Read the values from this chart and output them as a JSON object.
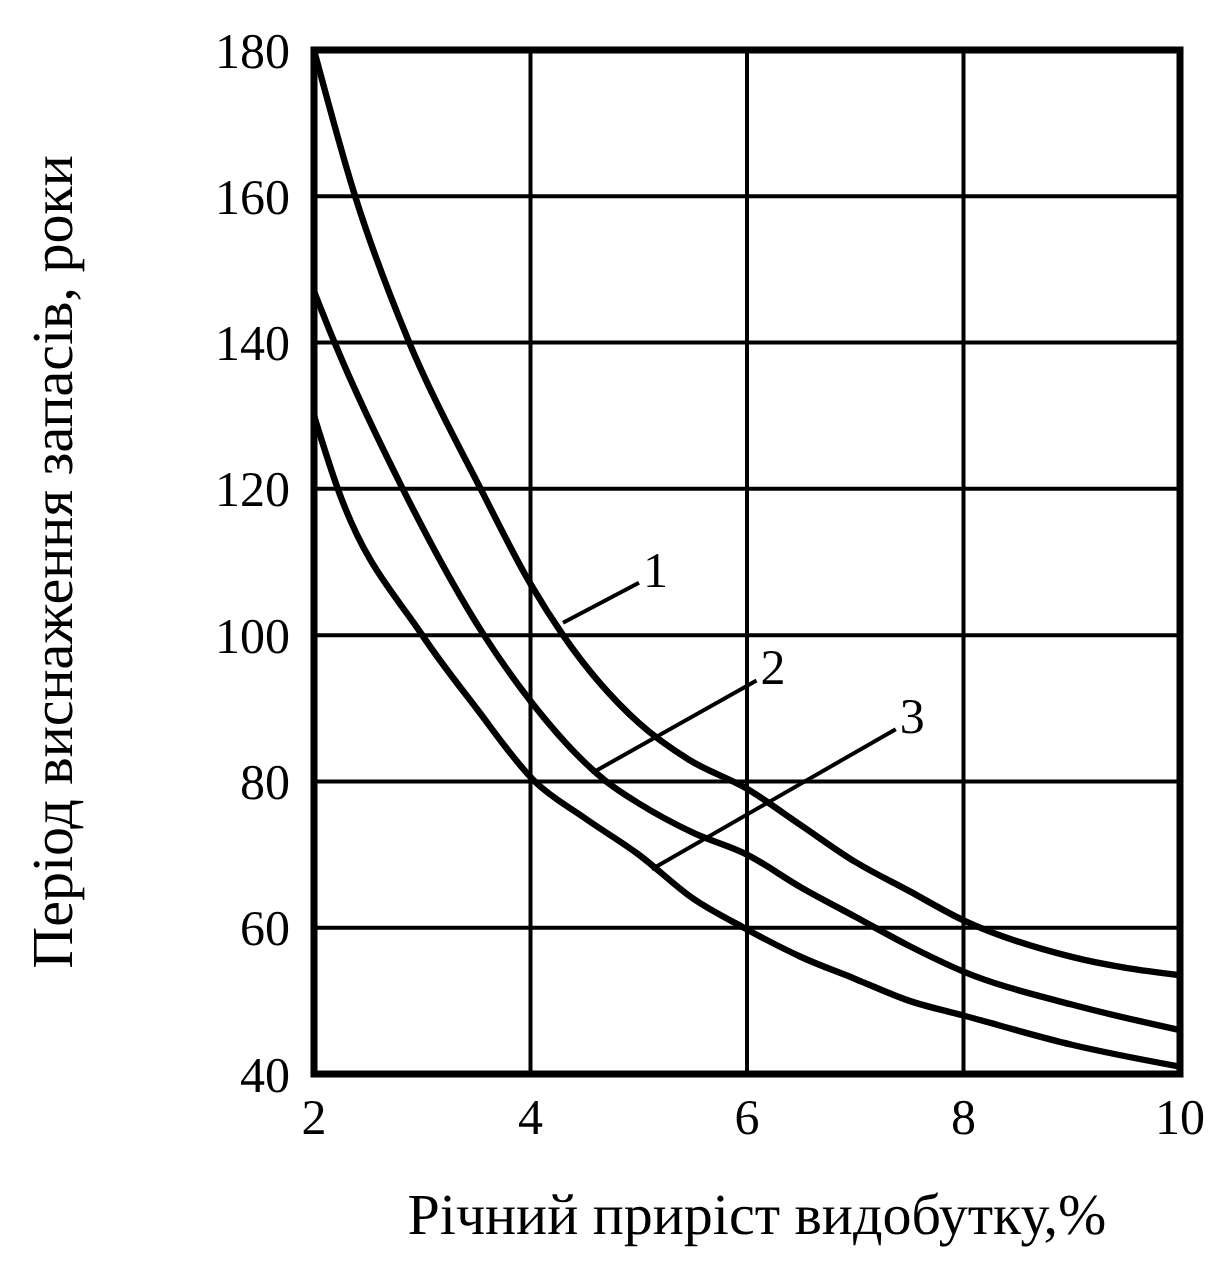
{
  "chart_data": {
    "type": "line",
    "xlabel": "Річний приріст видобутку,%",
    "ylabel": "Період виснаження запасів, роки",
    "xlim": [
      2,
      10
    ],
    "ylim": [
      40,
      180
    ],
    "xticks": [
      2,
      4,
      6,
      8,
      10
    ],
    "yticks": [
      40,
      60,
      80,
      100,
      120,
      140,
      160,
      180
    ],
    "grid": true,
    "marker": "none",
    "line_style": "solid",
    "series": [
      {
        "color": "#000000",
        "x": [
          2,
          2.38,
          2.88,
          3.54,
          4,
          4.3,
          5,
          5.46,
          6,
          6.5,
          7,
          7.5,
          8,
          9,
          10
        ],
        "values": [
          180,
          160,
          140,
          120,
          107,
          100,
          88,
          83,
          79,
          74,
          69,
          65,
          61,
          56,
          53.5
        ]
      },
      {
        "color": "#000000",
        "x": [
          2,
          2.19,
          2.82,
          3.57,
          4,
          4.7,
          5,
          5.5,
          6,
          6.5,
          7,
          7.5,
          8,
          9,
          10
        ],
        "values": [
          147,
          140,
          120,
          100,
          91,
          80,
          77,
          73,
          70,
          65.5,
          61.5,
          57.5,
          54,
          49.5,
          46
        ]
      },
      {
        "color": "#000000",
        "x": [
          2,
          2.22,
          3,
          3.5,
          4.04,
          4.5,
          5,
          5.5,
          5.97,
          6.5,
          7,
          7.5,
          8,
          9,
          10
        ],
        "values": [
          130,
          120,
          100,
          90,
          80,
          75,
          70,
          64,
          60,
          56,
          53,
          50,
          48,
          44,
          41
        ]
      }
    ],
    "annotations": [
      {
        "text": "1",
        "x": 4.3,
        "y": 101.7
      },
      {
        "text": "2",
        "x": 4.61,
        "y": 81.5
      },
      {
        "text": "3",
        "x": 5.12,
        "y": 68
      }
    ]
  }
}
